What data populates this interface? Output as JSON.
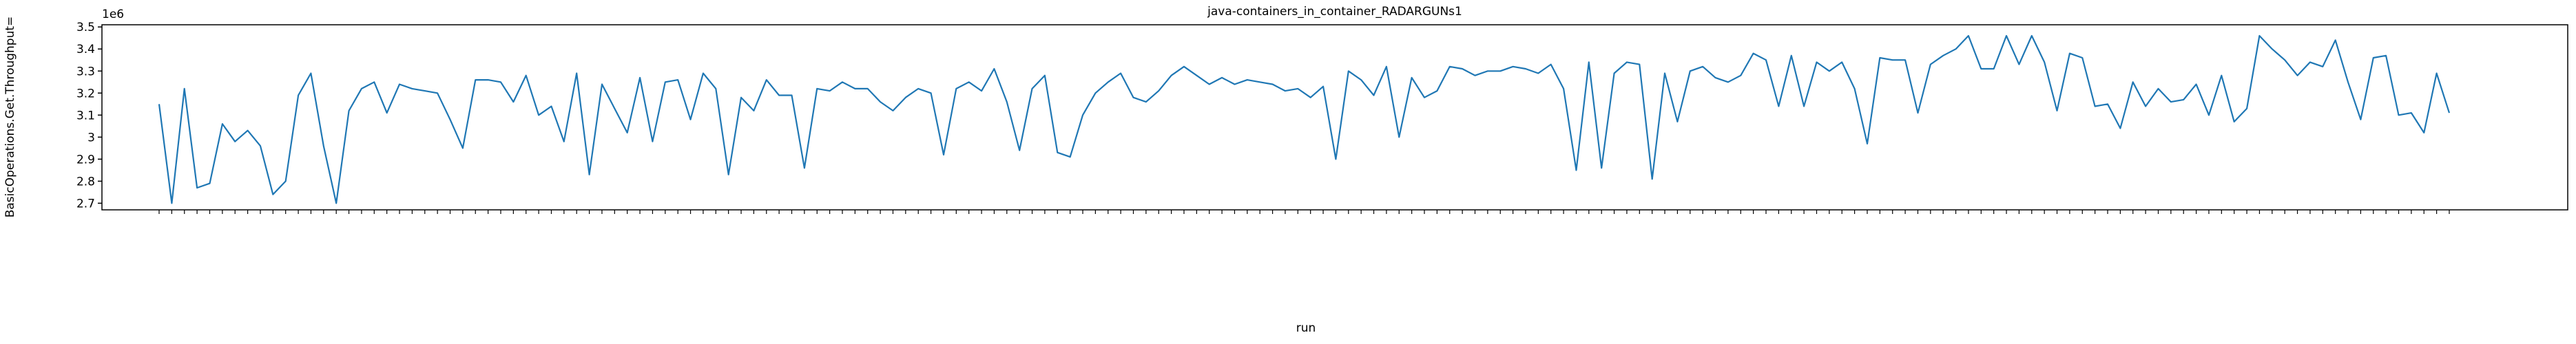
{
  "chart_data": {
    "type": "line",
    "title": "java-containers_in_container_RADARGUNs1",
    "x_label": "run",
    "y_label": "BasicOperations.Get.Throughput=",
    "y_offset_label": "1e6",
    "color": "#1f77b4",
    "ylim": [
      2.67,
      3.51
    ],
    "yticks": [
      2.7,
      2.8,
      2.9,
      3.0,
      3.1,
      3.2,
      3.3,
      3.4,
      3.5
    ],
    "categories": [
      null,
      null,
      null,
      null,
      null,
      null,
      null,
      null,
      null,
      null,
      null,
      null,
      null,
      null,
      null,
      null,
      null,
      null,
      null,
      null,
      null,
      null,
      null,
      null,
      null,
      null,
      null,
      null,
      null,
      null,
      null,
      null,
      null,
      null,
      null,
      null,
      null,
      null,
      null,
      null,
      null,
      null,
      null,
      null,
      null,
      null,
      null,
      null,
      null,
      null,
      null,
      null,
      null,
      null,
      null,
      null,
      null,
      null,
      null,
      null,
      null,
      null,
      null,
      null,
      null,
      null,
      null,
      null,
      null,
      null,
      null,
      null,
      null,
      null,
      null,
      null,
      null,
      null,
      null,
      null,
      null,
      null,
      null,
      null,
      null,
      null,
      null,
      null,
      null,
      null,
      null,
      null,
      null,
      null,
      null,
      null,
      null,
      null,
      null,
      null,
      null,
      null,
      null,
      null,
      null,
      null,
      null,
      null,
      null,
      null,
      null,
      null,
      null,
      null,
      null,
      null,
      null,
      null,
      null,
      null,
      null,
      null,
      null,
      null,
      null,
      null,
      null,
      null,
      null,
      null,
      null,
      null,
      null,
      null,
      null,
      null,
      null,
      null,
      null,
      null,
      null,
      null,
      null,
      null,
      null,
      null,
      null,
      null,
      null,
      null,
      null,
      null,
      null,
      null,
      null,
      null,
      null,
      null,
      null,
      null,
      null,
      null,
      null,
      null,
      null,
      null,
      null,
      null,
      null,
      null,
      null,
      null,
      null,
      null,
      null,
      null,
      null,
      null,
      null,
      null,
      null,
      null
    ],
    "values": [
      3.15,
      2.7,
      3.22,
      2.77,
      2.79,
      3.06,
      2.98,
      3.03,
      2.96,
      2.74,
      2.8,
      3.19,
      3.29,
      2.96,
      2.7,
      3.12,
      3.22,
      3.25,
      3.11,
      3.24,
      3.22,
      3.21,
      3.2,
      3.08,
      2.95,
      3.26,
      3.26,
      3.25,
      3.16,
      3.28,
      3.1,
      3.14,
      2.98,
      3.29,
      2.83,
      3.24,
      3.13,
      3.02,
      3.27,
      2.98,
      3.25,
      3.26,
      3.08,
      3.29,
      3.22,
      2.83,
      3.18,
      3.12,
      3.26,
      3.19,
      3.19,
      2.86,
      3.22,
      3.21,
      3.25,
      3.22,
      3.22,
      3.16,
      3.12,
      3.18,
      3.22,
      3.2,
      2.92,
      3.22,
      3.25,
      3.21,
      3.31,
      3.16,
      2.94,
      3.22,
      3.28,
      2.93,
      2.91,
      3.1,
      3.2,
      3.25,
      3.29,
      3.18,
      3.16,
      3.21,
      3.28,
      3.32,
      3.28,
      3.24,
      3.27,
      3.24,
      3.26,
      3.25,
      3.24,
      3.21,
      3.22,
      3.18,
      3.23,
      2.9,
      3.3,
      3.26,
      3.19,
      3.32,
      3.0,
      3.27,
      3.18,
      3.21,
      3.32,
      3.31,
      3.28,
      3.3,
      3.3,
      3.32,
      3.31,
      3.29,
      3.33,
      3.22,
      2.85,
      3.34,
      2.86,
      3.29,
      3.34,
      3.33,
      2.81,
      3.29,
      3.07,
      3.3,
      3.32,
      3.27,
      3.25,
      3.28,
      3.38,
      3.35,
      3.14,
      3.37,
      3.14,
      3.34,
      3.3,
      3.34,
      3.22,
      2.97,
      3.36,
      3.35,
      3.35,
      3.11,
      3.33,
      3.37,
      3.4,
      3.46,
      3.31,
      3.31,
      3.46,
      3.33,
      3.46,
      3.34,
      3.12,
      3.38,
      3.36,
      3.14,
      3.15,
      3.04,
      3.25,
      3.14,
      3.22,
      3.16,
      3.17,
      3.24,
      3.1,
      3.28,
      3.07,
      3.13,
      3.46,
      3.4,
      3.35,
      3.28,
      3.34,
      3.32,
      3.44,
      3.25,
      3.08,
      3.36,
      3.37,
      3.1,
      3.11,
      3.02,
      3.29,
      3.11
    ]
  }
}
